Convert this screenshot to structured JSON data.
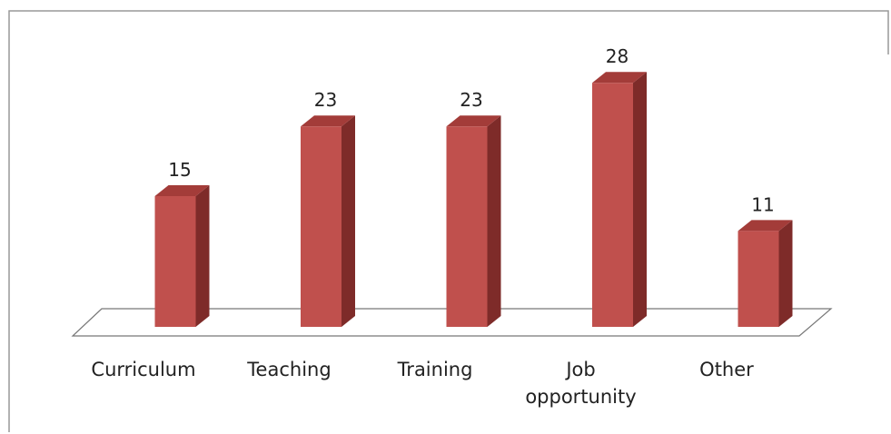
{
  "chart_data": {
    "type": "bar3d",
    "categories": [
      "Curriculum",
      "Teaching",
      "Training",
      "Job opportunity",
      "Other"
    ],
    "values": [
      15,
      23,
      23,
      28,
      11
    ],
    "color": "#c0504d"
  }
}
